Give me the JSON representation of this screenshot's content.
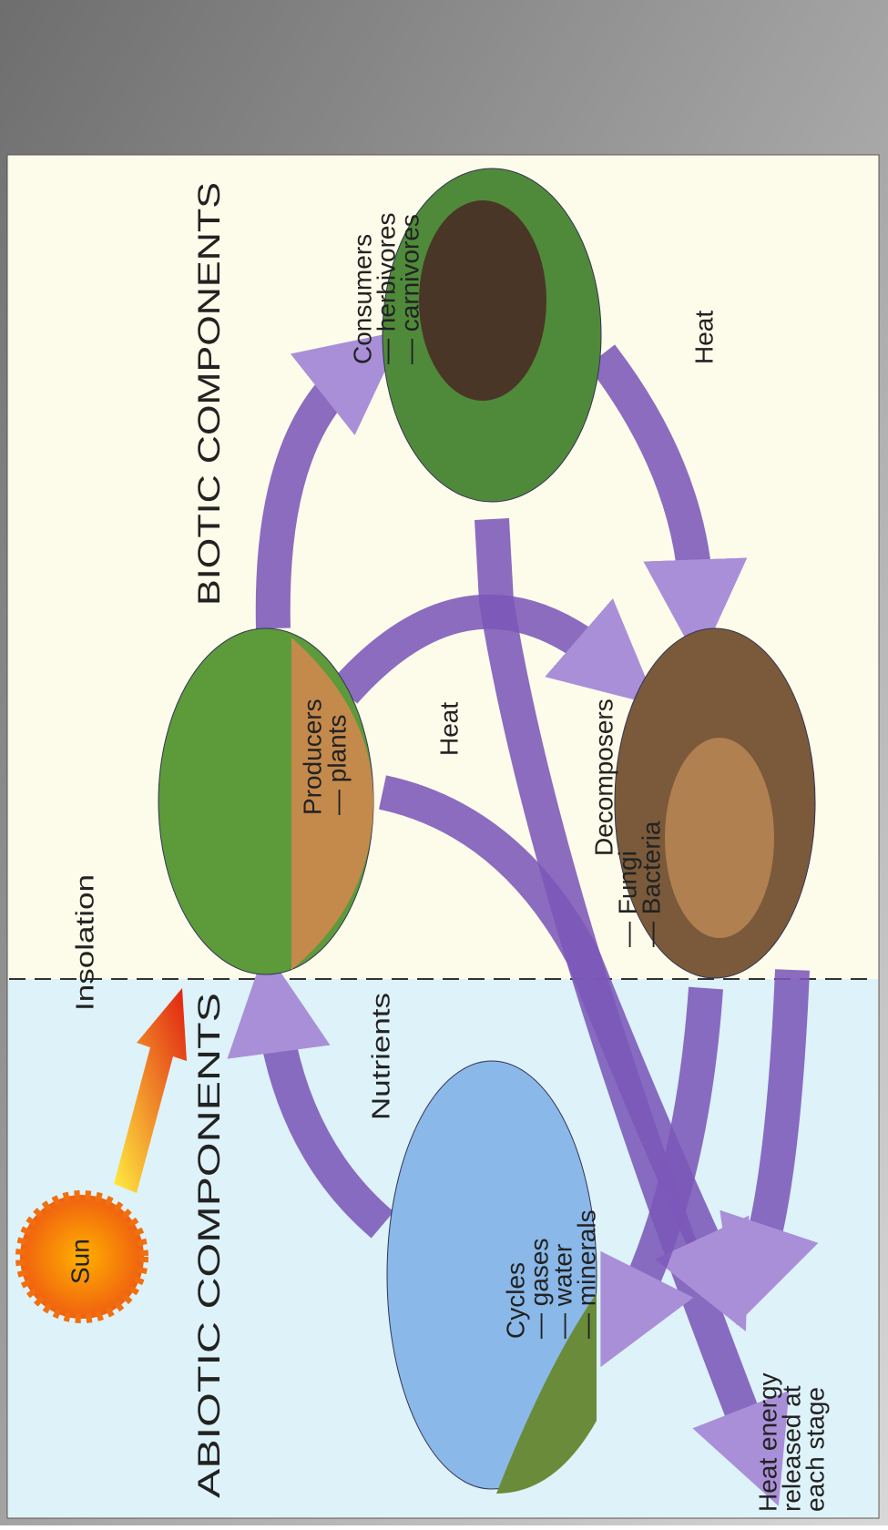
{
  "header": {
    "abiotic": "ABIOTIC COMPONENTS",
    "biotic": "BIOTIC COMPONENTS"
  },
  "sun": "Sun",
  "insolation": "Insolation",
  "nutrients": "Nutrients",
  "nodes": [
    {
      "lines": [
        "Cycles",
        "— gases",
        "— water",
        "— minerals"
      ]
    },
    {
      "lines": [
        "Producers",
        "— plants"
      ]
    },
    {
      "lines": [
        "Consumers",
        "— herbivores",
        "— carnivores"
      ]
    },
    {
      "lines": [
        "Decomposers",
        "— Fungi",
        "— Bacteria"
      ]
    }
  ],
  "heat_labels": [
    "Heat",
    "Heat"
  ],
  "heat_release": [
    "Heat energy",
    "released at",
    "each stage"
  ]
}
